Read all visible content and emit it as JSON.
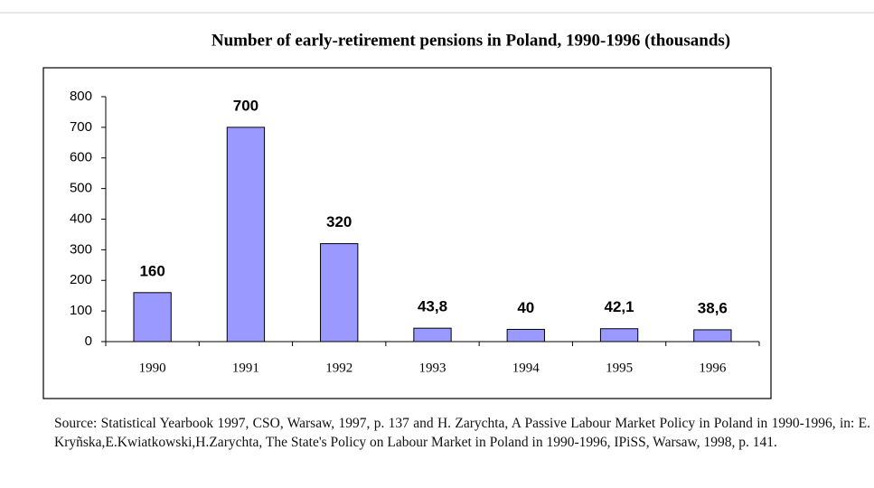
{
  "chart_data": {
    "type": "bar",
    "title": "Number of early-retirement pensions in Poland, 1990-1996 (thousands)",
    "categories": [
      "1990",
      "1991",
      "1992",
      "1993",
      "1994",
      "1995",
      "1996"
    ],
    "values": [
      160,
      700,
      320,
      43.8,
      40,
      42.1,
      38.6
    ],
    "value_labels": [
      "160",
      "700",
      "320",
      "43,8",
      "40",
      "42,1",
      "38,6"
    ],
    "color": "#9999ff",
    "ylim": [
      0,
      800
    ],
    "yticks": [
      0,
      100,
      200,
      300,
      400,
      500,
      600,
      700,
      800
    ],
    "grid": false,
    "source": "Source: Statistical Yearbook 1997, CSO, Warsaw, 1997, p. 137 and H. Zarychta, A Passive Labour Market Policy in Poland in 1990-1996, in: E. Kryñska,E.Kwiatkowski,H.Zarychta, The State's Policy on Labour Market in Poland in 1990-1996, IPiSS, Warsaw, 1998, p. 141."
  }
}
